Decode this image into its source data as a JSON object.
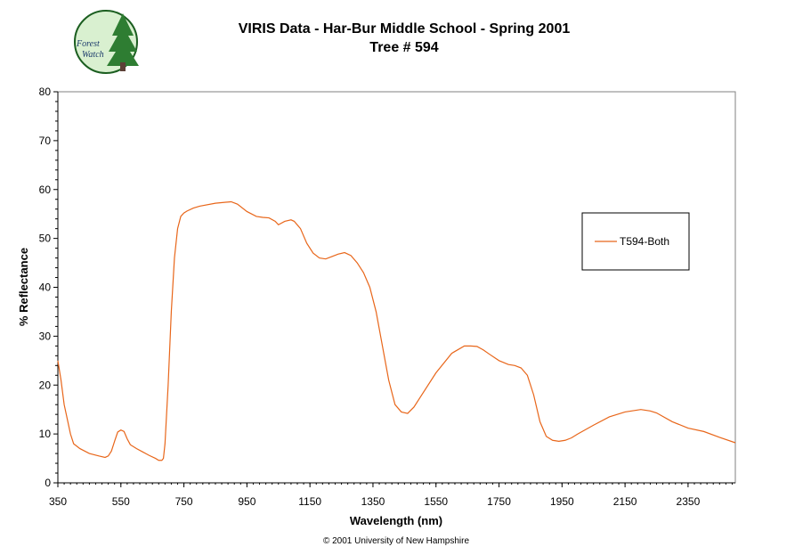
{
  "logo": {
    "line1": "Forest",
    "line2": "Watch"
  },
  "copyright": "© 2001 University of New Hampshire",
  "colors": {
    "series": "#e8661a",
    "axis": "#000000",
    "logo_green": "#2e7d32",
    "logo_bg": "#d9f0d0"
  },
  "chart_data": {
    "type": "line",
    "title": "VIRIS Data - Har-Bur Middle School - Spring 2001",
    "subtitle": "Tree # 594",
    "xlabel": "Wavelength (nm)",
    "ylabel": "% Reflectance",
    "xlim": [
      350,
      2500
    ],
    "ylim": [
      0,
      80
    ],
    "x_ticks": [
      350,
      550,
      750,
      950,
      1150,
      1350,
      1550,
      1750,
      1950,
      2150,
      2350
    ],
    "y_ticks": [
      0,
      10,
      20,
      30,
      40,
      50,
      60,
      70,
      80
    ],
    "grid": false,
    "legend": "right",
    "series": [
      {
        "name": "T594-Both",
        "x": [
          350,
          360,
          370,
          380,
          390,
          400,
          420,
          450,
          480,
          500,
          510,
          520,
          530,
          540,
          550,
          560,
          570,
          580,
          600,
          620,
          640,
          660,
          670,
          680,
          685,
          690,
          700,
          710,
          720,
          730,
          740,
          750,
          760,
          780,
          800,
          850,
          900,
          920,
          950,
          980,
          1000,
          1020,
          1040,
          1050,
          1070,
          1090,
          1100,
          1120,
          1140,
          1160,
          1180,
          1200,
          1220,
          1240,
          1260,
          1280,
          1300,
          1320,
          1340,
          1360,
          1380,
          1400,
          1420,
          1440,
          1460,
          1480,
          1500,
          1550,
          1600,
          1640,
          1660,
          1680,
          1700,
          1720,
          1750,
          1780,
          1800,
          1820,
          1840,
          1860,
          1880,
          1900,
          1920,
          1940,
          1960,
          1980,
          2000,
          2050,
          2100,
          2150,
          2200,
          2230,
          2250,
          2300,
          2350,
          2400,
          2450,
          2500
        ],
        "y": [
          25,
          21,
          16,
          13,
          10,
          8,
          7,
          6,
          5.5,
          5.2,
          5.5,
          6.5,
          8.5,
          10.4,
          10.8,
          10.5,
          9,
          7.8,
          7,
          6.3,
          5.6,
          5,
          4.6,
          4.6,
          5,
          8,
          20,
          35,
          46,
          52,
          54.5,
          55.2,
          55.6,
          56.2,
          56.6,
          57.2,
          57.5,
          57,
          55.5,
          54.5,
          54.3,
          54.2,
          53.5,
          52.8,
          53.5,
          53.8,
          53.5,
          52,
          49,
          47,
          46,
          45.8,
          46.3,
          46.8,
          47.1,
          46.5,
          45,
          43,
          40,
          35,
          28,
          21,
          16,
          14.5,
          14.2,
          15.5,
          17.5,
          22.5,
          26.5,
          28,
          28,
          27.9,
          27.2,
          26.3,
          25,
          24.2,
          24,
          23.5,
          22,
          18,
          12.5,
          9.5,
          8.7,
          8.5,
          8.7,
          9.2,
          10,
          11.8,
          13.5,
          14.5,
          15,
          14.7,
          14.3,
          12.5,
          11.2,
          10.5,
          9.3,
          8.2
        ]
      }
    ]
  }
}
